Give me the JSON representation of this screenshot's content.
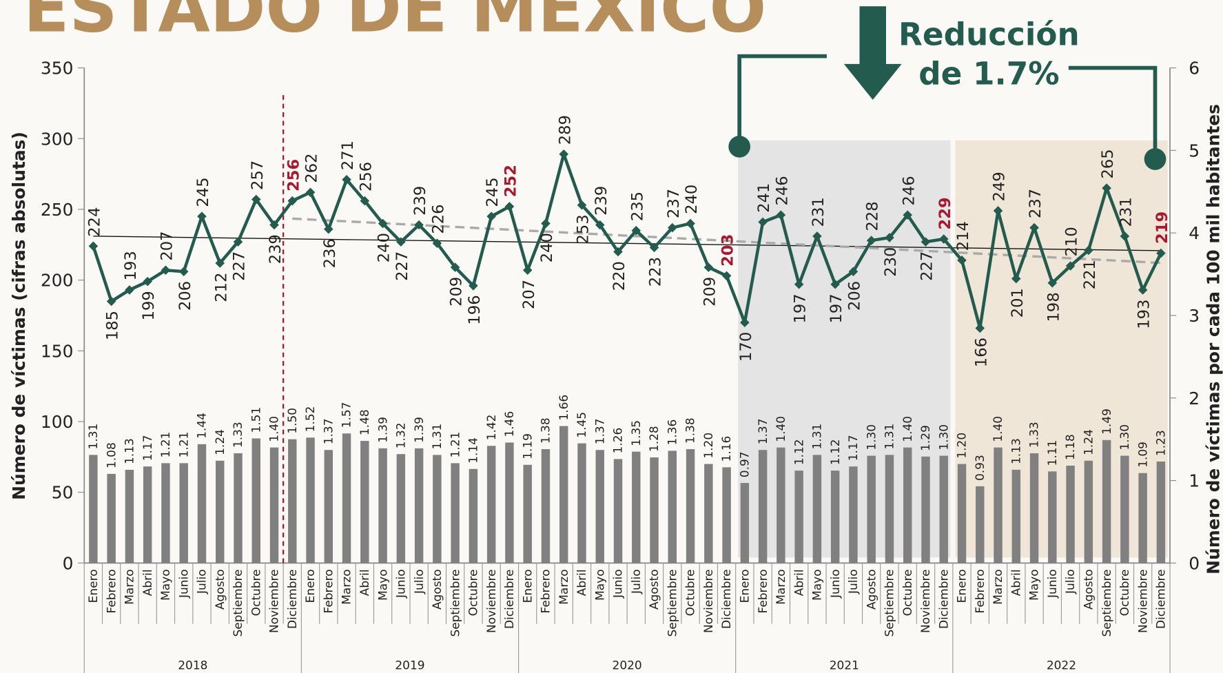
{
  "chart_data": {
    "type": "combo",
    "title": "ESTADO DE MÉXICO",
    "annotation": [
      "Reducción",
      "de 1.7%"
    ],
    "y_label": "Número de víctimas (cifras absolutas)",
    "y2_label": "Número de víctimas por cada 100 mil habitantes",
    "categories": [
      "Enero",
      "Febrero",
      "Marzo",
      "Abril",
      "Mayo",
      "Junio",
      "Julio",
      "Agosto",
      "Septiembre",
      "Octubre",
      "Noviembre",
      "Diciembre",
      "Enero",
      "Febrero",
      "Marzo",
      "Abril",
      "Mayo",
      "Junio",
      "Julio",
      "Agosto",
      "Septiembre",
      "Octubre",
      "Noviembre",
      "Diciembre",
      "Enero",
      "Febrero",
      "Marzo",
      "Abril",
      "Mayo",
      "Junio",
      "Julio",
      "Agosto",
      "Septiembre",
      "Octubre",
      "Noviembre",
      "Diciembre",
      "Enero",
      "Febrero",
      "Marzo",
      "Abril",
      "Mayo",
      "Junio",
      "Julio",
      "Agosto",
      "Septiembre",
      "Octubre",
      "Noviembre",
      "Diciembre",
      "Enero",
      "Febrero",
      "Marzo",
      "Abril",
      "Mayo",
      "Junio",
      "Julio",
      "Agosto",
      "Septiembre",
      "Octubre",
      "Noviembre",
      "Diciembre"
    ],
    "years": [
      "2018",
      "2019",
      "2020",
      "2021",
      "2022"
    ],
    "year_fill": [
      null,
      null,
      null,
      "#e4e4e4",
      "#efe6d8"
    ],
    "series": [
      {
        "type": "line",
        "color": "#235b4e",
        "highlight_color": "#a6192e",
        "values": [
          224,
          185,
          193,
          199,
          207,
          206,
          245,
          212,
          227,
          257,
          239,
          256,
          262,
          236,
          271,
          256,
          240,
          227,
          239,
          226,
          209,
          196,
          245,
          252,
          207,
          240,
          289,
          253,
          239,
          220,
          235,
          223,
          237,
          240,
          209,
          203,
          170,
          241,
          246,
          197,
          231,
          197,
          206,
          228,
          230,
          246,
          227,
          229,
          214,
          166,
          249,
          201,
          237,
          198,
          210,
          221,
          265,
          231,
          193,
          219
        ]
      },
      {
        "type": "bar",
        "axis": "y2",
        "color": "#808080",
        "values": [
          1.31,
          1.08,
          1.13,
          1.17,
          1.21,
          1.21,
          1.44,
          1.24,
          1.33,
          1.51,
          1.4,
          1.5,
          1.52,
          1.37,
          1.57,
          1.48,
          1.39,
          1.32,
          1.39,
          1.31,
          1.21,
          1.14,
          1.42,
          1.46,
          1.19,
          1.38,
          1.66,
          1.45,
          1.37,
          1.26,
          1.35,
          1.28,
          1.36,
          1.38,
          1.2,
          1.16,
          0.97,
          1.37,
          1.4,
          1.12,
          1.31,
          1.12,
          1.17,
          1.3,
          1.31,
          1.4,
          1.29,
          1.3,
          1.2,
          0.93,
          1.4,
          1.13,
          1.33,
          1.11,
          1.18,
          1.24,
          1.49,
          1.3,
          1.09,
          1.23
        ],
        "value_labels": [
          "1.31",
          "1.08",
          "1.13",
          "1.17",
          "1.21",
          "1.21",
          "1.44",
          "1.24",
          "1.33",
          "1.51",
          "1.40",
          "1.50",
          "1.52",
          "1.37",
          "1.57",
          "1.48",
          "1.39",
          "1.32",
          "1.39",
          "1.31",
          "1.21",
          "1.14",
          "1.42",
          "1.46",
          "1.19",
          "1.38",
          "1.66",
          "1.45",
          "1.37",
          "1.26",
          "1.35",
          "1.28",
          "1.36",
          "1.38",
          "1.20",
          "1.16",
          "0.97",
          "1.37",
          "1.40",
          "1.12",
          "1.31",
          "1.12",
          "1.17",
          "1.30",
          "1.31",
          "1.40",
          "1.29",
          "1.30",
          "1.20",
          "0.93",
          "1.40",
          "1.13",
          "1.33",
          "1.11",
          "1.18",
          "1.24",
          "1.49",
          "1.30",
          "1.09",
          "1.23"
        ]
      }
    ],
    "ylim": [
      0,
      350
    ],
    "yticks": [
      0,
      50,
      100,
      150,
      200,
      250,
      300,
      350
    ],
    "y2lim": [
      0,
      6
    ],
    "y2ticks": [
      0,
      1,
      2,
      3,
      4,
      5,
      6
    ]
  }
}
